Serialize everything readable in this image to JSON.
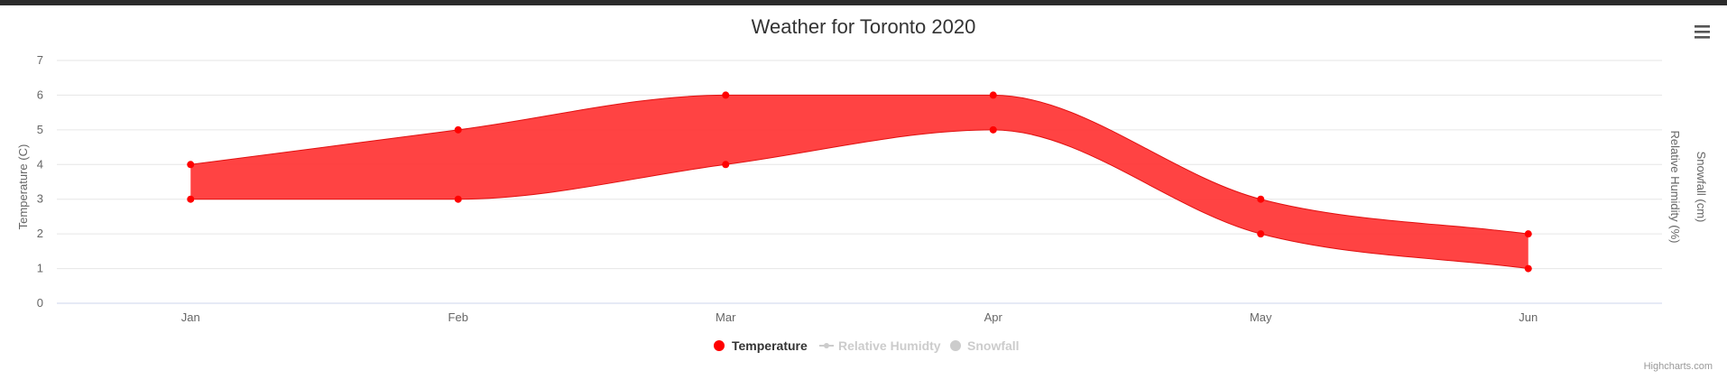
{
  "chart_data": {
    "type": "area",
    "title": "Weather for Toronto 2020",
    "categories": [
      "Jan",
      "Feb",
      "Mar",
      "Apr",
      "May",
      "Jun"
    ],
    "ylabel": "Temperature (C)",
    "ylabel_right_1": "Relative Humidity (%)",
    "ylabel_right_2": "Snowfall (cm)",
    "ylim": [
      0,
      7
    ],
    "yticks": [
      "0",
      "1",
      "2",
      "3",
      "4",
      "5",
      "6",
      "7"
    ],
    "grid": true,
    "legend_placement": "bottom-center",
    "series": [
      {
        "name": "Temperature",
        "kind": "arearange",
        "color": "#ff0000",
        "visible": true,
        "low": [
          3,
          3,
          4,
          5,
          2,
          1
        ],
        "high": [
          4,
          5,
          6,
          6,
          3,
          2
        ]
      },
      {
        "name": "Relative Humidty",
        "visible": false
      },
      {
        "name": "Snowfall",
        "visible": false
      }
    ],
    "credits": "Highcharts.com"
  },
  "colors": {
    "series": "#ff0000",
    "fill": "#ff3333",
    "grid": "#e6e6e6",
    "hidden": "#cccccc"
  },
  "icons": {
    "menu": "hamburger-menu-icon"
  }
}
